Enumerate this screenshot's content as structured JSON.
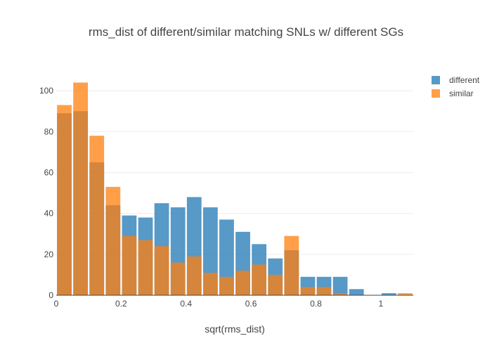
{
  "chart_data": {
    "type": "bar",
    "barmode": "overlay",
    "title": "rms_dist of different/similar matching SNLs w/ different SGs",
    "xlabel": "sqrt(rms_dist)",
    "ylabel": "",
    "xlim": [
      0,
      1.1
    ],
    "ylim": [
      0,
      110
    ],
    "bin_width": 0.05,
    "x_ticks": [
      0,
      0.2,
      0.4,
      0.6,
      0.8,
      1
    ],
    "x_tick_labels": [
      "0",
      "0.2",
      "0.4",
      "0.6",
      "0.8",
      "1"
    ],
    "y_ticks": [
      0,
      20,
      40,
      60,
      80,
      100
    ],
    "y_tick_labels": [
      "0",
      "20",
      "40",
      "60",
      "80",
      "100"
    ],
    "grid": true,
    "legend_position": "top-right",
    "bin_starts": [
      0,
      0.05,
      0.1,
      0.15,
      0.2,
      0.25,
      0.3,
      0.35,
      0.4,
      0.45,
      0.5,
      0.55,
      0.6,
      0.65,
      0.7,
      0.75,
      0.8,
      0.85,
      0.9,
      0.95,
      1.0,
      1.05
    ],
    "series": [
      {
        "name": "different",
        "color": "#1f77b4",
        "values": [
          89,
          90,
          65,
          44,
          39,
          38,
          45,
          43,
          48,
          43,
          37,
          31,
          25,
          18,
          22,
          9,
          9,
          9,
          3,
          0,
          1,
          0
        ]
      },
      {
        "name": "similar",
        "color": "#ff7f0e",
        "values": [
          93,
          104,
          78,
          53,
          29,
          27,
          24,
          16,
          19,
          11,
          9,
          12,
          15,
          10,
          29,
          4,
          4,
          1,
          0,
          0,
          0,
          1
        ]
      }
    ]
  }
}
